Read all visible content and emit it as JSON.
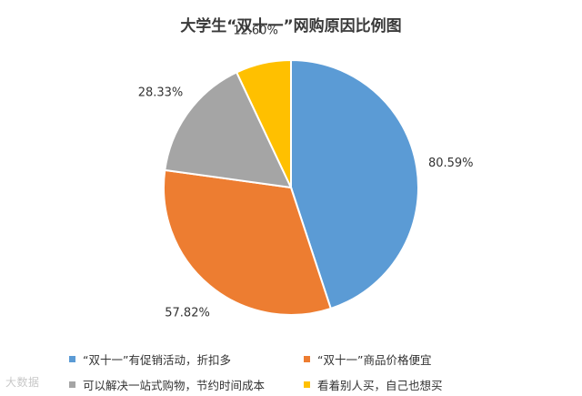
{
  "chart_data": {
    "type": "pie",
    "title": "大学生“双十一”网购原因比例图",
    "categories": [
      "“双十一”有促销活动，折扣多",
      "“双十一”商品价格便宜",
      "可以解决一站式购物，节约时间成本",
      "看着别人买，自己也想买"
    ],
    "values": [
      80.59,
      57.82,
      28.33,
      12.6
    ],
    "data_labels": [
      "80.59%",
      "57.82%",
      "28.33%",
      "12.60%"
    ],
    "colors": [
      "#5b9bd5",
      "#ed7d31",
      "#a5a5a5",
      "#ffc000"
    ],
    "legend_position": "bottom",
    "start_angle_deg": 0,
    "direction": "clockwise"
  },
  "watermark": "大数据"
}
